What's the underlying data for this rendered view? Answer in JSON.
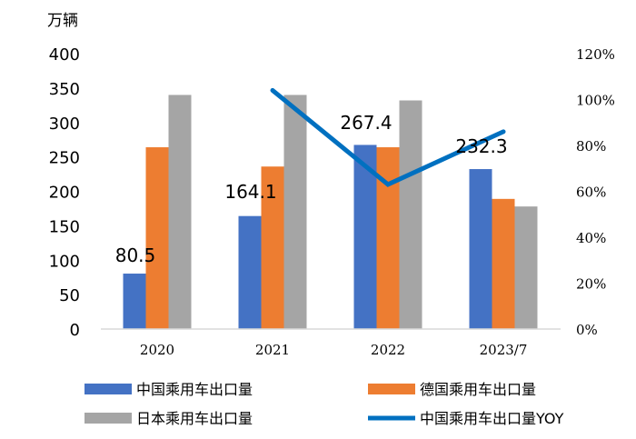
{
  "chart_data": {
    "type": "bar",
    "title": "",
    "y_unit_label": "万辆",
    "categories": [
      "2020",
      "2021",
      "2022",
      "2023/7"
    ],
    "ylim": [
      0,
      400
    ],
    "yticks": [
      "0",
      "50",
      "100",
      "150",
      "200",
      "250",
      "300",
      "350",
      "400"
    ],
    "y2lim": [
      0,
      120
    ],
    "y2ticks": [
      "0%",
      "20%",
      "40%",
      "60%",
      "80%",
      "100%",
      "120%"
    ],
    "grid": false,
    "legend_position": "bottom",
    "series": [
      {
        "name": "中国乘用车出口量",
        "type": "bar",
        "axis": "left",
        "color": "#4472C4",
        "values": [
          80.5,
          164.1,
          267.4,
          232.3
        ],
        "data_labels": [
          "80.5",
          "164.1",
          "267.4",
          "232.3"
        ]
      },
      {
        "name": "德国乘用车出口量",
        "type": "bar",
        "axis": "left",
        "color": "#ED7D31",
        "values": [
          264,
          236,
          264,
          189
        ]
      },
      {
        "name": "日本乘用车出口量",
        "type": "bar",
        "axis": "left",
        "color": "#A5A5A5",
        "values": [
          340,
          340,
          332,
          178
        ]
      },
      {
        "name": "中国乘用车出口量YOY",
        "type": "line",
        "axis": "right",
        "color": "#0070C0",
        "values": [
          null,
          104,
          63,
          86
        ]
      }
    ]
  }
}
